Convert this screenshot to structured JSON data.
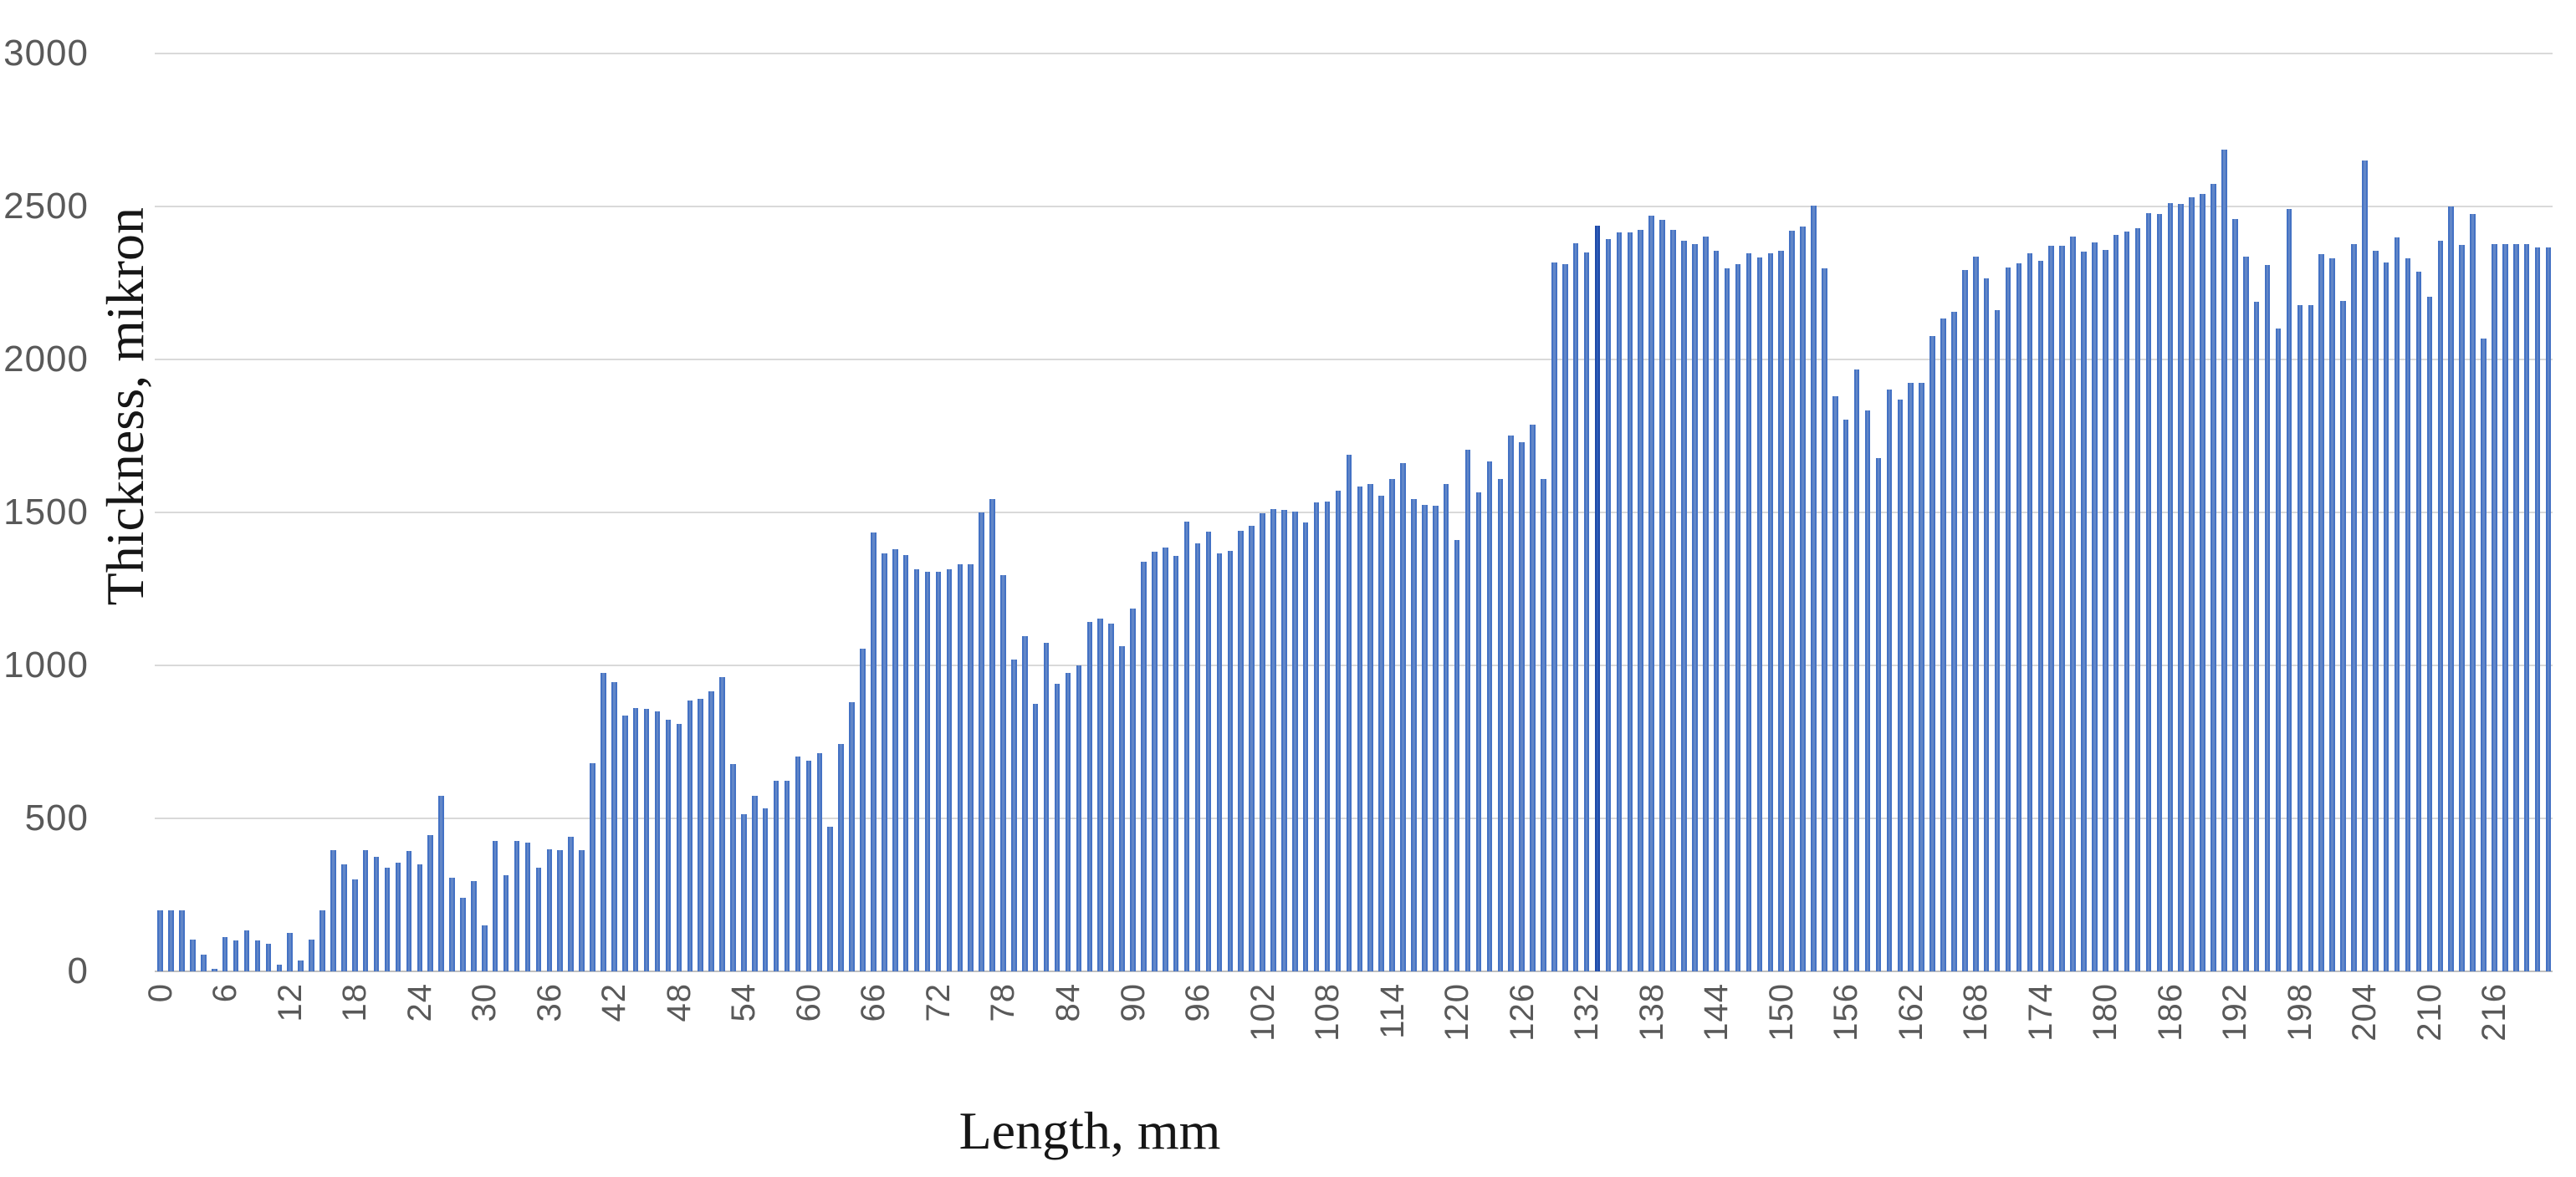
{
  "chart_data": {
    "type": "bar",
    "title": "",
    "xlabel": "Length, mm",
    "ylabel": "Thickness, mikron",
    "ylim": [
      0,
      3000
    ],
    "y_ticks": [
      0,
      500,
      1000,
      1500,
      2000,
      2500,
      3000
    ],
    "grid": "horizontal",
    "legend": "none",
    "x_start": 0,
    "x_step": 1,
    "x_tick_interval": 6,
    "x_tick_labels": [
      0,
      6,
      12,
      18,
      24,
      30,
      36,
      42,
      48,
      54,
      60,
      66,
      72,
      78,
      84,
      90,
      96,
      102,
      108,
      114,
      120,
      126,
      132,
      138,
      144,
      150,
      156,
      162,
      168,
      174,
      180,
      186,
      192,
      198,
      204,
      210,
      216
    ],
    "bar_color": "#6287c8",
    "bar_border_color": "#4472c4",
    "dark_bar_index": 133,
    "dark_bar_color": "#2e5cb8",
    "dark_bar_border_color": "#1f4aa8",
    "values": [
      200,
      200,
      200,
      105,
      55,
      8,
      112,
      102,
      133,
      102,
      90,
      22,
      127,
      35,
      105,
      200,
      395,
      350,
      300,
      395,
      375,
      340,
      355,
      393,
      350,
      445,
      575,
      305,
      240,
      295,
      150,
      425,
      315,
      425,
      420,
      340,
      400,
      395,
      440,
      395,
      680,
      975,
      945,
      835,
      860,
      858,
      850,
      823,
      810,
      884,
      891,
      915,
      962,
      678,
      515,
      573,
      532,
      624,
      622,
      703,
      688,
      713,
      474,
      744,
      881,
      1054,
      1435,
      1365,
      1380,
      1360,
      1315,
      1305,
      1305,
      1313,
      1330,
      1330,
      1500,
      1545,
      1295,
      1020,
      1095,
      875,
      1075,
      940,
      975,
      1000,
      1143,
      1152,
      1137,
      1062,
      1187,
      1338,
      1372,
      1385,
      1357,
      1470,
      1398,
      1438,
      1366,
      1373,
      1441,
      1457,
      1497,
      1512,
      1507,
      1503,
      1468,
      1532,
      1536,
      1572,
      1688,
      1584,
      1594,
      1554,
      1609,
      1662,
      1543,
      1525,
      1522,
      1594,
      1409,
      1706,
      1565,
      1667,
      1609,
      1751,
      1729,
      1787,
      1609,
      2318,
      2312,
      2381,
      2349,
      2437,
      2394,
      2414,
      2414,
      2423,
      2469,
      2456,
      2423,
      2387,
      2377,
      2401,
      2354,
      2297,
      2311,
      2346,
      2333,
      2346,
      2355,
      2421,
      2434,
      2502,
      2297,
      1879,
      1802,
      1967,
      1832,
      1678,
      1901,
      1868,
      1923,
      1923,
      2077,
      2135,
      2157,
      2291,
      2337,
      2264,
      2162,
      2300,
      2315,
      2347,
      2322,
      2372,
      2372,
      2402,
      2352,
      2382,
      2359,
      2407,
      2419,
      2429,
      2479,
      2475,
      2512,
      2509,
      2530,
      2542,
      2575,
      2687,
      2459,
      2336,
      2188,
      2309,
      2101,
      2492,
      2177,
      2177,
      2344,
      2330,
      2190,
      2376,
      2650,
      2355,
      2317,
      2398,
      2330,
      2287,
      2205,
      2387,
      2500,
      2374,
      2475,
      2068,
      2376,
      2376,
      2376,
      2376,
      2365,
      2365
    ]
  }
}
